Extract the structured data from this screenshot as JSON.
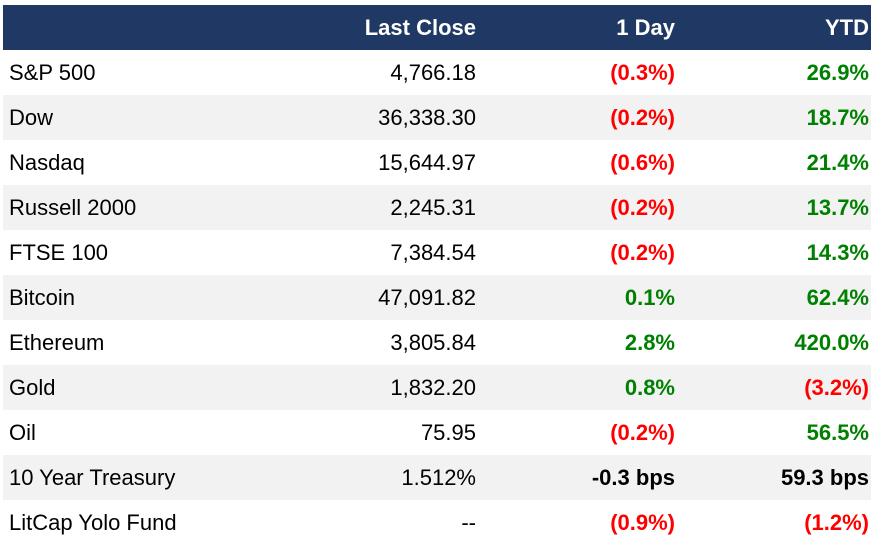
{
  "columns": {
    "name": "",
    "close": "Last Close",
    "day": "1 Day",
    "ytd": "YTD"
  },
  "colors": {
    "header_bg": "#1f3864",
    "negative": "#ff0000",
    "positive": "#008000",
    "row_alt_bg": "#f2f2f2"
  },
  "rows": [
    {
      "name": "S&P 500",
      "close": "4,766.18",
      "day": "(0.3%)",
      "day_sign": "neg",
      "ytd": "26.9%",
      "ytd_sign": "pos"
    },
    {
      "name": "Dow",
      "close": "36,338.30",
      "day": "(0.2%)",
      "day_sign": "neg",
      "ytd": "18.7%",
      "ytd_sign": "pos"
    },
    {
      "name": "Nasdaq",
      "close": "15,644.97",
      "day": "(0.6%)",
      "day_sign": "neg",
      "ytd": "21.4%",
      "ytd_sign": "pos"
    },
    {
      "name": "Russell 2000",
      "close": "2,245.31",
      "day": "(0.2%)",
      "day_sign": "neg",
      "ytd": "13.7%",
      "ytd_sign": "pos"
    },
    {
      "name": "FTSE 100",
      "close": "7,384.54",
      "day": "(0.2%)",
      "day_sign": "neg",
      "ytd": "14.3%",
      "ytd_sign": "pos"
    },
    {
      "name": "Bitcoin",
      "close": "47,091.82",
      "day": "0.1%",
      "day_sign": "pos",
      "ytd": "62.4%",
      "ytd_sign": "pos"
    },
    {
      "name": "Ethereum",
      "close": "3,805.84",
      "day": "2.8%",
      "day_sign": "pos",
      "ytd": "420.0%",
      "ytd_sign": "pos"
    },
    {
      "name": "Gold",
      "close": "1,832.20",
      "day": "0.8%",
      "day_sign": "pos",
      "ytd": "(3.2%)",
      "ytd_sign": "neg"
    },
    {
      "name": "Oil",
      "close": "75.95",
      "day": "(0.2%)",
      "day_sign": "neg",
      "ytd": "56.5%",
      "ytd_sign": "pos"
    },
    {
      "name": "10 Year Treasury",
      "close": "1.512%",
      "day": "-0.3 bps",
      "day_sign": "flat",
      "ytd": "59.3 bps",
      "ytd_sign": "flat"
    },
    {
      "name": "LitCap Yolo Fund",
      "close": "--",
      "day": "(0.9%)",
      "day_sign": "neg",
      "ytd": "(1.2%)",
      "ytd_sign": "neg"
    }
  ]
}
